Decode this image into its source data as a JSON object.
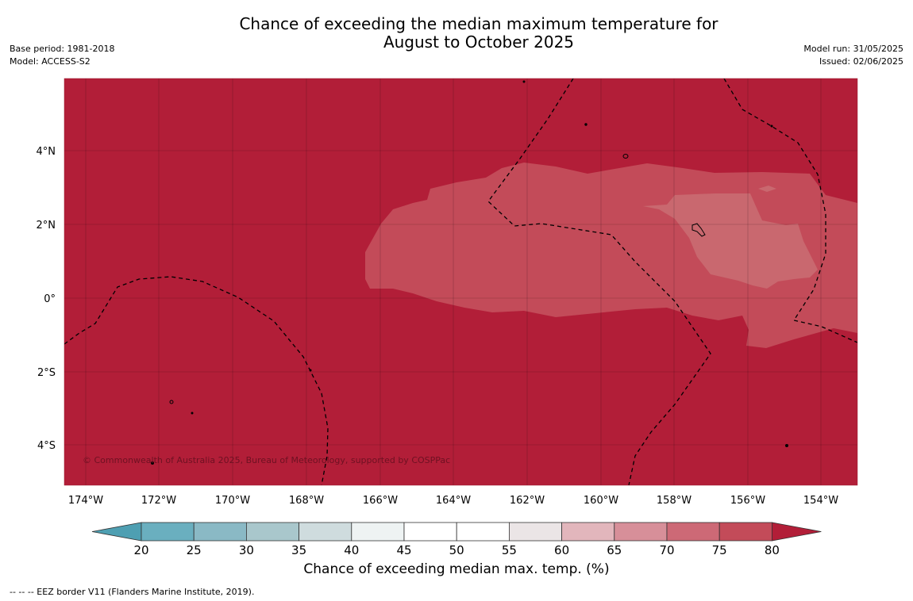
{
  "title": {
    "line1": "Chance of exceeding the median maximum temperature for",
    "line2": "August to October 2025"
  },
  "meta_left": {
    "base_period": "Base period: 1981-2018",
    "model": "Model: ACCESS-S2"
  },
  "meta_right": {
    "model_run": "Model run: 31/05/2025",
    "issued": "Issued: 02/06/2025"
  },
  "map": {
    "lat_ticks": [
      "4°N",
      "2°N",
      "0°",
      "2°S",
      "4°S"
    ],
    "lon_ticks": [
      "174°W",
      "172°W",
      "170°W",
      "168°W",
      "166°W",
      "164°W",
      "162°W",
      "160°W",
      "158°W",
      "156°W",
      "154°W"
    ],
    "copyright": "© Commonwealth of Australia 2025, Bureau of Meteorology, supported by COSPPac",
    "colors": {
      "background_80plus": "#b21e38",
      "band_75_80": "#c34b59",
      "band_70_75": "#c9686f"
    }
  },
  "colorbar": {
    "ticks": [
      "20",
      "25",
      "30",
      "35",
      "40",
      "45",
      "50",
      "55",
      "60",
      "65",
      "70",
      "75",
      "80"
    ],
    "colors": [
      "#4e9fb2",
      "#6aafbf",
      "#8ab9c5",
      "#a9c7cc",
      "#cfdcde",
      "#eef3f3",
      "#ffffff",
      "#ffffff",
      "#ebe5e6",
      "#e2b6bc",
      "#d78f99",
      "#cd6976",
      "#c34b59",
      "#b21e38"
    ],
    "label": "Chance of exceeding median max. temp. (%)"
  },
  "footer": "--  --  -- EEZ border V11 (Flanders Marine Institute, 2019)."
}
